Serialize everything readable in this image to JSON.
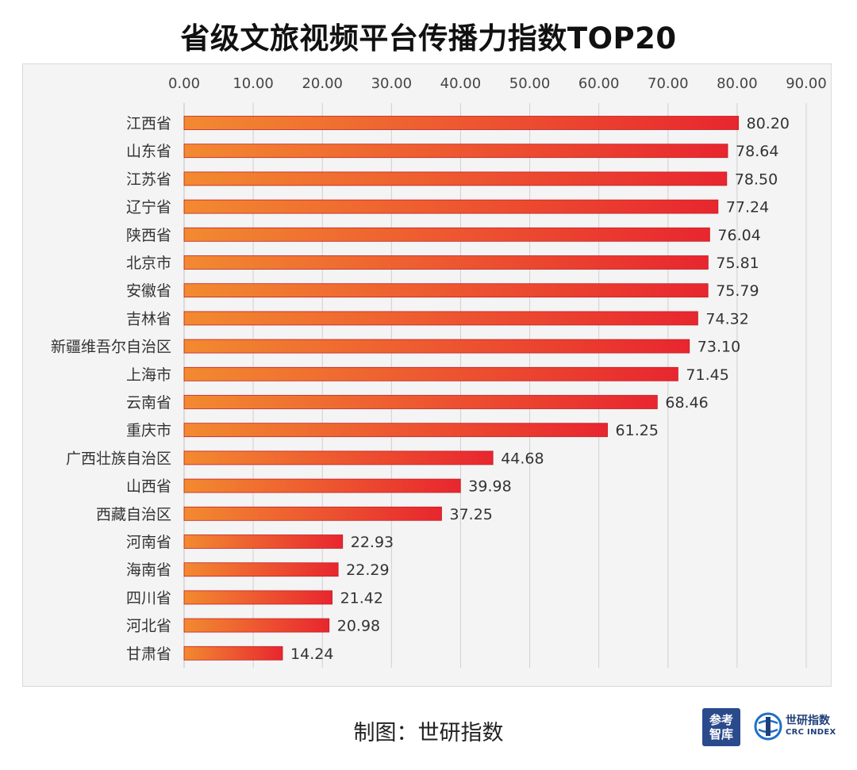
{
  "title": "省级文旅视频平台传播力指数TOP20",
  "source": "制图：世研指数",
  "logos": {
    "left_line1": "参考",
    "left_line2": "智库",
    "right_text": "世研指数",
    "right_sub": "CRC INDEX"
  },
  "colors": {
    "bar_start": "#f28a30",
    "bar_end": "#e8262f",
    "grid": "#d0d0d0",
    "background": "#f4f4f4"
  },
  "chart_data": {
    "type": "bar",
    "orientation": "horizontal",
    "title": "省级文旅视频平台传播力指数TOP20",
    "xlim": [
      0,
      90
    ],
    "x_ticks": [
      "0.00",
      "10.00",
      "20.00",
      "30.00",
      "40.00",
      "50.00",
      "60.00",
      "70.00",
      "80.00",
      "90.00"
    ],
    "x_tick_values": [
      0,
      10,
      20,
      30,
      40,
      50,
      60,
      70,
      80,
      90
    ],
    "axis_position": "top",
    "grid": true,
    "categories": [
      "江西省",
      "山东省",
      "江苏省",
      "辽宁省",
      "陕西省",
      "北京市",
      "安徽省",
      "吉林省",
      "新疆维吾尔自治区",
      "上海市",
      "云南省",
      "重庆市",
      "广西壮族自治区",
      "山西省",
      "西藏自治区",
      "河南省",
      "海南省",
      "四川省",
      "河北省",
      "甘肃省"
    ],
    "values": [
      80.2,
      78.64,
      78.5,
      77.24,
      76.04,
      75.81,
      75.79,
      74.32,
      73.1,
      71.45,
      68.46,
      61.25,
      44.68,
      39.98,
      37.25,
      22.93,
      22.29,
      21.42,
      20.98,
      14.24
    ],
    "value_labels": [
      "80.20",
      "78.64",
      "78.50",
      "77.24",
      "76.04",
      "75.81",
      "75.79",
      "74.32",
      "73.10",
      "71.45",
      "68.46",
      "61.25",
      "44.68",
      "39.98",
      "37.25",
      "22.93",
      "22.29",
      "21.42",
      "20.98",
      "14.24"
    ]
  }
}
